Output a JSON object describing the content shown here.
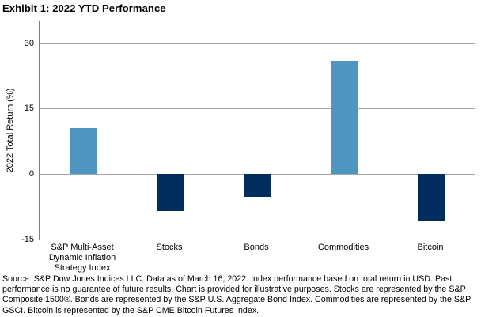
{
  "title": "Exhibit 1: 2022 YTD Performance",
  "chart_data": {
    "type": "bar",
    "title": "Exhibit 1: 2022 YTD Performance",
    "xlabel": "",
    "ylabel": "2022 Total Return (%)",
    "categories": [
      "S&P Multi-Asset Dynamic Inflation Strategy Index",
      "Stocks",
      "Bonds",
      "Commodities",
      "Bitcoin"
    ],
    "values": [
      10.5,
      -8.5,
      -5.2,
      26.0,
      -10.8
    ],
    "bar_colors": [
      "#4F97C2",
      "#002D5E",
      "#002D5E",
      "#4F97C2",
      "#002D5E"
    ],
    "yticks": [
      30,
      15,
      0,
      -15
    ],
    "ylim": [
      -15,
      35
    ],
    "grid": "horizontal-only",
    "legend": "none"
  },
  "colors": {
    "positive_bar": "#4F97C2",
    "negative_bar": "#002D5E",
    "gridline": "#A6A6A6",
    "axis_line": "#7F7F7F",
    "text": "#000000",
    "background": "#FFFFFF"
  },
  "source_note": {
    "lines": [
      "Source: S&P Dow Jones Indices LLC. Data as of March 16, 2022. Index performance based on total return in USD. Past",
      "performance is no guarantee of future results. Chart is provided for illustrative purposes. Stocks are represented by the S&P",
      "Composite 1500®. Bonds are represented by the S&P U.S. Aggregate Bond Index. Commodities are represented by the S&P",
      "GSCI. Bitcoin is represented by the S&P CME Bitcoin Futures Index."
    ]
  }
}
